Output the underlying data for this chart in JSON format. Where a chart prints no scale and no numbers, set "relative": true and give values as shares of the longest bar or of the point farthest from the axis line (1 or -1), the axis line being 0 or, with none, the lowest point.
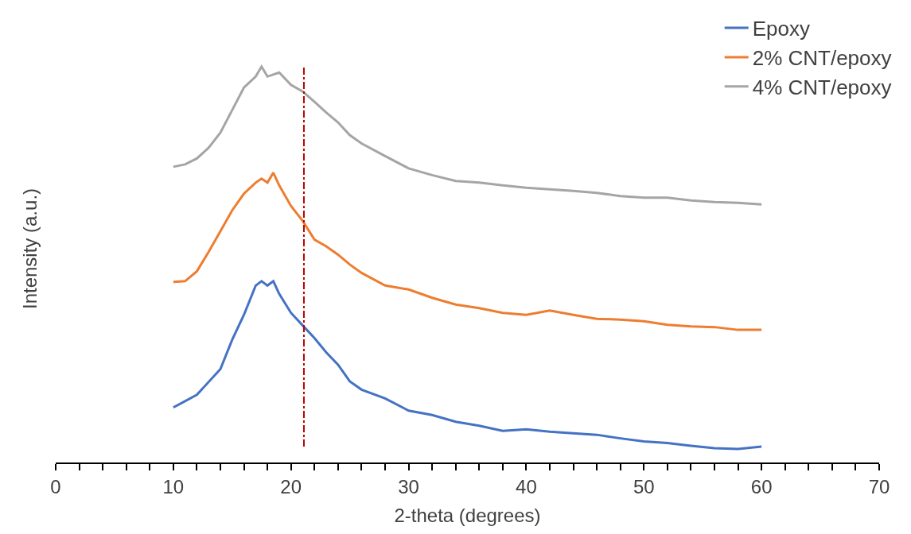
{
  "chart_data": {
    "type": "line",
    "relative": true,
    "xlabel": "2-theta (degrees)",
    "ylabel": "Intensity (a.u.)",
    "xlim": [
      0,
      70
    ],
    "xticks": [
      0,
      {
        "value": 2,
        "label": null
      },
      {
        "value": 4,
        "label": null
      },
      {
        "value": 6,
        "label": null
      },
      {
        "value": 8,
        "label": null
      },
      10,
      {
        "value": 12,
        "label": null
      },
      {
        "value": 14,
        "label": null
      },
      {
        "value": 16,
        "label": null
      },
      {
        "value": 18,
        "label": null
      },
      20,
      {
        "value": 22,
        "label": null
      },
      {
        "value": 24,
        "label": null
      },
      {
        "value": 26,
        "label": null
      },
      {
        "value": 28,
        "label": null
      },
      30,
      {
        "value": 32,
        "label": null
      },
      {
        "value": 34,
        "label": null
      },
      {
        "value": 36,
        "label": null
      },
      {
        "value": 38,
        "label": null
      },
      40,
      {
        "value": 42,
        "label": null
      },
      {
        "value": 44,
        "label": null
      },
      {
        "value": 46,
        "label": null
      },
      {
        "value": 48,
        "label": null
      },
      50,
      {
        "value": 52,
        "label": null
      },
      {
        "value": 54,
        "label": null
      },
      {
        "value": 56,
        "label": null
      },
      {
        "value": 58,
        "label": null
      },
      60,
      {
        "value": 62,
        "label": null
      },
      {
        "value": 64,
        "label": null
      },
      {
        "value": 66,
        "label": null
      },
      {
        "value": 68,
        "label": null
      },
      70
    ],
    "tick_labels": "x",
    "legend": "top right",
    "marker": "none",
    "line_style": "solid",
    "series": [
      {
        "name": "Epoxy",
        "color": "#4472c4",
        "x": [
          10,
          12,
          14,
          15,
          16,
          17,
          17.5,
          18,
          18.5,
          19,
          20,
          21,
          22,
          23,
          24,
          25,
          26,
          28,
          30,
          32,
          34,
          36,
          38,
          40,
          42,
          44,
          46,
          48,
          50,
          52,
          54,
          56,
          58,
          60
        ],
        "values": [
          0.139,
          0.171,
          0.236,
          0.31,
          0.373,
          0.447,
          0.458,
          0.447,
          0.458,
          0.426,
          0.378,
          0.346,
          0.314,
          0.278,
          0.247,
          0.205,
          0.184,
          0.162,
          0.131,
          0.12,
          0.103,
          0.093,
          0.08,
          0.084,
          0.078,
          0.074,
          0.07,
          0.061,
          0.053,
          0.049,
          0.042,
          0.036,
          0.034,
          0.04
        ]
      },
      {
        "name": "2% CNT/epoxy",
        "color": "#ed7d31",
        "x": [
          10,
          11,
          12,
          13,
          14,
          15,
          16,
          17,
          17.5,
          18,
          18.5,
          19,
          20,
          21,
          22,
          23,
          24,
          25,
          26,
          28,
          30,
          32,
          34,
          36,
          38,
          40,
          42,
          44,
          46,
          48,
          50,
          52,
          54,
          56,
          58,
          60
        ],
        "values": [
          0.456,
          0.458,
          0.483,
          0.532,
          0.584,
          0.637,
          0.679,
          0.707,
          0.717,
          0.707,
          0.732,
          0.7,
          0.648,
          0.61,
          0.563,
          0.546,
          0.525,
          0.5,
          0.479,
          0.447,
          0.437,
          0.416,
          0.399,
          0.39,
          0.378,
          0.373,
          0.384,
          0.373,
          0.363,
          0.361,
          0.357,
          0.348,
          0.344,
          0.342,
          0.335,
          0.335
        ]
      },
      {
        "name": "4% CNT/epoxy",
        "color": "#a5a5a5",
        "x": [
          10,
          11,
          12,
          13,
          14,
          15,
          16,
          17,
          17.5,
          18,
          19,
          20,
          21,
          22,
          23,
          24,
          25,
          26,
          28,
          30,
          32,
          34,
          36,
          38,
          40,
          42,
          44,
          46,
          48,
          50,
          52,
          54,
          56,
          58,
          60
        ],
        "values": [
          0.747,
          0.753,
          0.768,
          0.795,
          0.833,
          0.89,
          0.947,
          0.975,
          1,
          0.975,
          0.985,
          0.954,
          0.937,
          0.911,
          0.884,
          0.859,
          0.827,
          0.806,
          0.774,
          0.743,
          0.726,
          0.711,
          0.707,
          0.7,
          0.694,
          0.69,
          0.686,
          0.681,
          0.673,
          0.669,
          0.669,
          0.662,
          0.658,
          0.656,
          0.652
        ]
      }
    ],
    "ref_lines": [
      {
        "axis": "x",
        "value": 21.1,
        "color": "#c00000",
        "line_style": "dashdot"
      }
    ]
  }
}
